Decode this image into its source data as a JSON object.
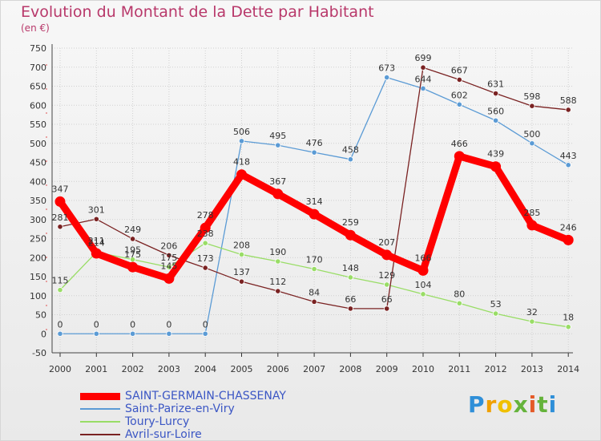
{
  "chart_data": {
    "type": "line",
    "title": "Evolution du Montant de la Dette par Habitant",
    "subtitle": "(en €)",
    "categories": [
      "2000",
      "2001",
      "2002",
      "2003",
      "2004",
      "2005",
      "2006",
      "2007",
      "2008",
      "2009",
      "2010",
      "2011",
      "2012",
      "2013",
      "2014"
    ],
    "ylim": [
      -50,
      750
    ],
    "yticks": [
      -50,
      0,
      50,
      100,
      150,
      200,
      250,
      300,
      350,
      400,
      450,
      500,
      550,
      600,
      650,
      700,
      750
    ],
    "grid": true,
    "legend_position": "bottom-left",
    "series": [
      {
        "name": "SAINT-GERMAIN-CHASSENAY",
        "color": "#ff0000",
        "values": [
          347,
          211,
          175,
          145,
          278,
          418,
          367,
          314,
          259,
          207,
          166,
          466,
          439,
          285,
          246
        ],
        "labels": [
          "347",
          "211",
          "175",
          "145",
          "278",
          "418",
          "367",
          "314",
          "259",
          "207",
          "166",
          "466",
          "439",
          "285",
          "246"
        ]
      },
      {
        "name": "Saint-Parize-en-Viry",
        "color": "#5b9bd5",
        "values": [
          0,
          0,
          0,
          0,
          0,
          506,
          495,
          476,
          458,
          673,
          644,
          602,
          560,
          500,
          443
        ],
        "labels": [
          "0",
          "0",
          "0",
          "0",
          "0",
          "506",
          "495",
          "476",
          "458",
          "673",
          "644",
          "602",
          "560",
          "500",
          "443"
        ]
      },
      {
        "name": "Toury-Lurcy",
        "color": "#99dd66",
        "values": [
          115,
          214,
          195,
          175,
          238,
          208,
          190,
          170,
          148,
          129,
          104,
          80,
          53,
          32,
          18
        ],
        "labels": [
          "115",
          "214",
          "195",
          "175",
          "238",
          "208",
          "190",
          "170",
          "148",
          "129",
          "104",
          "80",
          "53",
          "32",
          "18"
        ]
      },
      {
        "name": "Avril-sur-Loire",
        "color": "#7a2222",
        "values": [
          281,
          301,
          249,
          206,
          173,
          137,
          112,
          84,
          66,
          66,
          699,
          667,
          631,
          598,
          588
        ],
        "labels": [
          "281",
          "301",
          "249",
          "206",
          "173",
          "137",
          "112",
          "84",
          "66",
          "66",
          "699",
          "667",
          "631",
          "598",
          "588"
        ]
      }
    ]
  },
  "logo": {
    "text": "Proxiti",
    "parts": [
      "P",
      "r",
      "o",
      "x",
      "i",
      "t",
      "i"
    ]
  }
}
